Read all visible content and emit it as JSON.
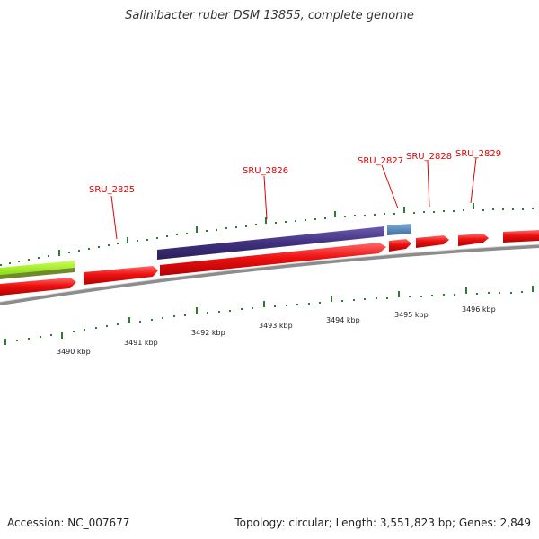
{
  "title": "Salinibacter ruber DSM 13855, complete genome",
  "footer": {
    "accession": "Accession: NC_007677",
    "summary": "Topology: circular; Length: 3,551,823 bp; Genes: 2,849"
  },
  "colors": {
    "forward_gene": "#ee1111",
    "reverse_gene": "#40307e",
    "reverse_gene_small": "#4f7fb0",
    "green_feature": "#99ee22",
    "green_feature_dark": "#6f8a2a",
    "backbone": "#8c8c8c",
    "tick": "#2e7d2e",
    "label": "#e00000"
  },
  "gene_labels": [
    "SRU_2825",
    "SRU_2826",
    "SRU_2827",
    "SRU_2828",
    "SRU_2829"
  ],
  "kbp_labels": [
    "3490 kbp",
    "3491 kbp",
    "3492 kbp",
    "3493 kbp",
    "3494 kbp",
    "3495 kbp",
    "3496 kbp"
  ]
}
